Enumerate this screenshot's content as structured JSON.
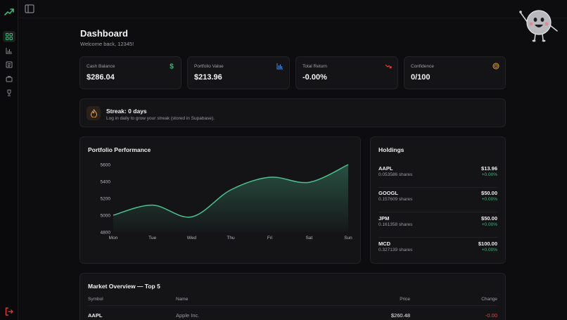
{
  "sidebar": {
    "nav": [
      "dashboard",
      "analytics",
      "news",
      "portfolio",
      "leaderboard"
    ]
  },
  "header": {
    "title": "Dashboard",
    "welcome": "Welcome back, 12345!"
  },
  "stats": [
    {
      "label": "Cash Balance",
      "value": "$286.04",
      "icon": "dollar-icon",
      "color": "#3fb67f"
    },
    {
      "label": "Portfolio Value",
      "value": "$213.96",
      "icon": "bar-chart-icon",
      "color": "#4a8fe0"
    },
    {
      "label": "Total Return",
      "value": "-0.00%",
      "icon": "trend-down-icon",
      "color": "#e04848"
    },
    {
      "label": "Confidence",
      "value": "0/100",
      "icon": "target-icon",
      "color": "#e0a030"
    }
  ],
  "streak": {
    "title": "Streak: 0 days",
    "subtitle": "Log in daily to grow your streak (stored in Supabase)."
  },
  "performance": {
    "title": "Portfolio Performance"
  },
  "chart_data": {
    "type": "area",
    "title": "Portfolio Performance",
    "categories": [
      "Mon",
      "Tue",
      "Wed",
      "Thu",
      "Fri",
      "Sat",
      "Sun"
    ],
    "values": [
      5000,
      5120,
      4980,
      5300,
      5450,
      5390,
      5600
    ],
    "ylim": [
      4800,
      5600
    ],
    "yticks": [
      4800,
      5000,
      5200,
      5400,
      5600
    ],
    "color": "#4fbf8f",
    "grid": false
  },
  "holdings": {
    "title": "Holdings",
    "items": [
      {
        "symbol": "AAPL",
        "shares": "0.053586 shares",
        "value": "$13.96",
        "change": "+0.00%"
      },
      {
        "symbol": "GOOGL",
        "shares": "0.157609 shares",
        "value": "$50.00",
        "change": "+0.00%"
      },
      {
        "symbol": "JPM",
        "shares": "0.161358 shares",
        "value": "$50.00",
        "change": "+0.00%"
      },
      {
        "symbol": "MCD",
        "shares": "0.327139 shares",
        "value": "$100.00",
        "change": "+0.00%"
      }
    ]
  },
  "market": {
    "title": "Market Overview — Top 5",
    "headers": {
      "symbol": "Symbol",
      "name": "Name",
      "price": "Price",
      "change": "Change"
    },
    "rows": [
      {
        "symbol": "AAPL",
        "name": "Apple Inc.",
        "price": "$260.48",
        "change": "-0.00"
      }
    ]
  }
}
